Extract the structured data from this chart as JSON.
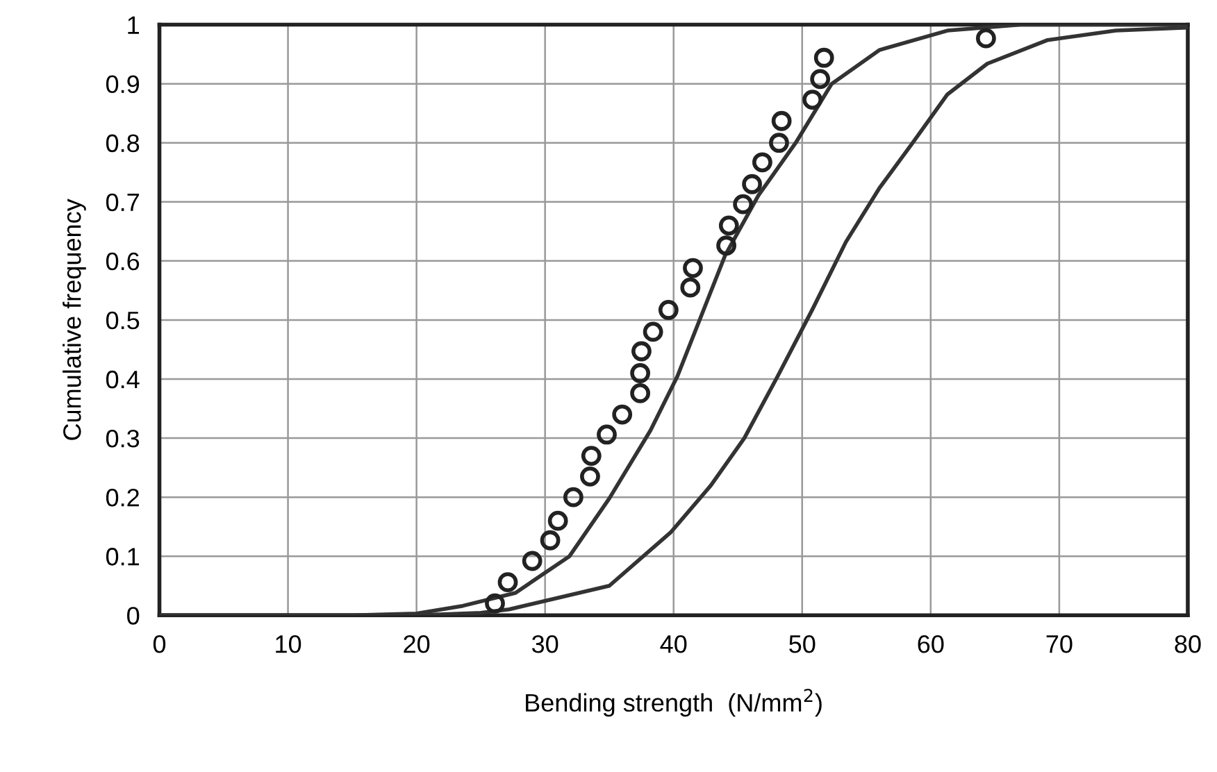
{
  "chart_data": {
    "type": "scatter",
    "xlabel": "Bending strength  (N/mm$^{2}$)",
    "ylabel": "Cumulative frequency",
    "xlim": [
      0,
      80
    ],
    "ylim": [
      0,
      1
    ],
    "xticks": [
      0,
      10,
      20,
      30,
      40,
      50,
      60,
      70,
      80
    ],
    "yticks": [
      0,
      0.1,
      0.2,
      0.3,
      0.4,
      0.5,
      0.6,
      0.7,
      0.8,
      0.9,
      1
    ],
    "grid": true,
    "legend": false,
    "series": [
      {
        "color": "#222222",
        "marker": "circle",
        "x": [
          26.1,
          27.1,
          29.0,
          30.4,
          31.0,
          32.2,
          33.5,
          33.6,
          34.8,
          36.0,
          37.4,
          37.4,
          37.5,
          38.4,
          39.6,
          41.3,
          41.5,
          44.1,
          44.3,
          45.4,
          46.1,
          46.9,
          48.2,
          48.4,
          50.8,
          51.4,
          51.7,
          64.3
        ],
        "values": [
          0.02,
          0.056,
          0.092,
          0.127,
          0.16,
          0.2,
          0.235,
          0.27,
          0.306,
          0.34,
          0.376,
          0.41,
          0.447,
          0.48,
          0.517,
          0.555,
          0.588,
          0.626,
          0.66,
          0.696,
          0.73,
          0.767,
          0.8,
          0.837,
          0.873,
          0.908,
          0.944,
          0.977
        ]
      },
      {
        "type": "line",
        "color": "#333333",
        "marker": "none",
        "line_style": "solid",
        "x": [
          0,
          15,
          20,
          23.6,
          27.7,
          31.9,
          35.0,
          38.2,
          40.3,
          44.0,
          46.6,
          49.5,
          52.3,
          56.0,
          61.3,
          67,
          80
        ],
        "values": [
          0,
          0,
          0.003,
          0.016,
          0.038,
          0.1,
          0.198,
          0.313,
          0.405,
          0.609,
          0.711,
          0.8,
          0.9,
          0.957,
          0.99,
          1,
          1
        ]
      },
      {
        "type": "line",
        "color": "#333333",
        "marker": "none",
        "line_style": "solid",
        "x": [
          0,
          20,
          25,
          27.2,
          35.0,
          39.8,
          42.9,
          45.5,
          48.1,
          50.8,
          53.4,
          56.0,
          58.6,
          61.3,
          64.4,
          69.1,
          74.4,
          80
        ],
        "values": [
          0,
          0,
          0.004,
          0.01,
          0.05,
          0.141,
          0.22,
          0.3,
          0.405,
          0.518,
          0.632,
          0.723,
          0.8,
          0.882,
          0.934,
          0.974,
          0.99,
          0.995
        ]
      }
    ]
  }
}
